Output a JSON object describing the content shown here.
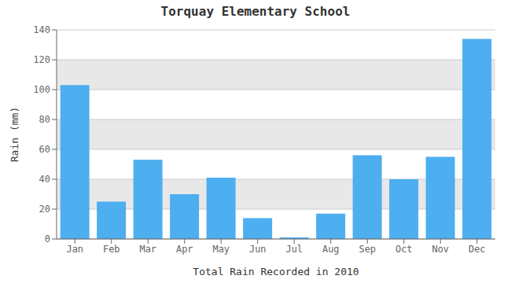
{
  "chart_data": {
    "type": "bar",
    "title": "Torquay Elementary School",
    "xlabel": "Total Rain Recorded in 2010",
    "ylabel": "Rain (mm)",
    "categories": [
      "Jan",
      "Feb",
      "Mar",
      "Apr",
      "May",
      "Jun",
      "Jul",
      "Aug",
      "Sep",
      "Oct",
      "Nov",
      "Dec"
    ],
    "values": [
      103,
      25,
      53,
      30,
      41,
      14,
      1,
      17,
      56,
      40,
      55,
      134
    ],
    "color": "#4daef0",
    "ylim": [
      0,
      140
    ],
    "yticks": [
      0,
      20,
      40,
      60,
      80,
      100,
      120,
      140
    ],
    "grid": true
  }
}
